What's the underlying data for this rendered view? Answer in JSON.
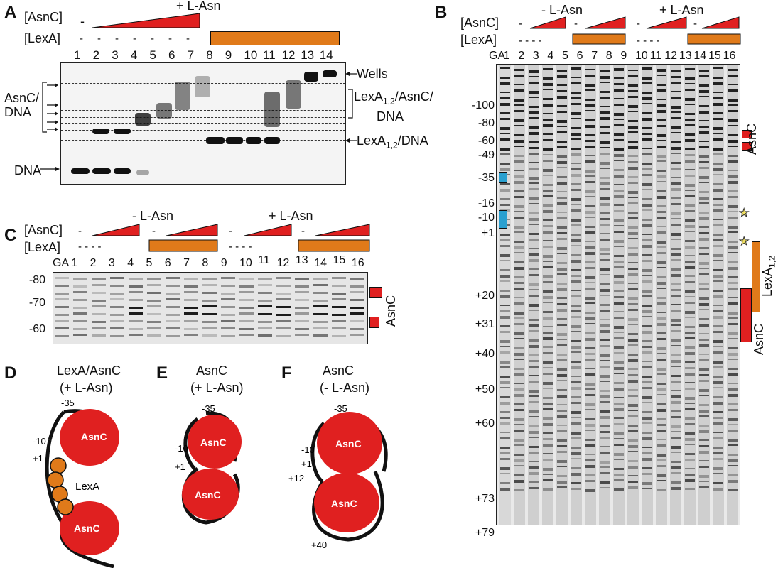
{
  "panels": {
    "A": {
      "letter": "A",
      "asnc_label": "[AsnC]",
      "lexa_label": "[LexA]",
      "lasn_label": "+ L-Asn",
      "lane_numbers": [
        "1",
        "2",
        "3",
        "4",
        "5",
        "6",
        "7",
        "8",
        "9",
        "10",
        "11",
        "12",
        "13",
        "14"
      ],
      "asnc_lane1": "-",
      "lexa_minus": [
        "-",
        "-",
        "-",
        "-",
        "-",
        "-",
        "-"
      ],
      "left_labels": {
        "complex": "AsnC/\nDNA",
        "dna": "DNA"
      },
      "right_labels": {
        "wells": "Wells",
        "lexa_asnc": "LexA",
        "lexa_asnc_sub": "1,2",
        "lexa_asnc_rest": "/AsnC/",
        "lexa_asnc_dna": "DNA",
        "lexa_dna": "LexA",
        "lexa_dna_sub": "1,2",
        "lexa_dna_rest": "/DNA"
      }
    },
    "B": {
      "letter": "B",
      "asnc_label": "[AsnC]",
      "lexa_label": "[LexA]",
      "minus_lasn": "- L-Asn",
      "plus_lasn": "+ L-Asn",
      "lane_header": [
        "GA",
        "1",
        "2",
        "3",
        "4",
        "5",
        "6",
        "7",
        "8",
        "9",
        "10",
        "11",
        "12",
        "13",
        "14",
        "15",
        "16"
      ],
      "positions": [
        "-100",
        "-80",
        "-60",
        "-49",
        "-35",
        "-16",
        "-10",
        "+1",
        "+20",
        "+31",
        "+40",
        "+50",
        "+60",
        "+73",
        "+79"
      ],
      "right_labels": {
        "asnc_top": "AsnC",
        "lexa": "LexA",
        "lexa_sub": "1,2",
        "asnc_bottom": "AsnC"
      }
    },
    "C": {
      "letter": "C",
      "asnc_label": "[AsnC]",
      "lexa_label": "[LexA]",
      "minus_lasn": "- L-Asn",
      "plus_lasn": "+ L-Asn",
      "lane_header": [
        "GA",
        "1",
        "2",
        "3",
        "4",
        "5",
        "6",
        "7",
        "8",
        "9",
        "10",
        "11",
        "12",
        "13",
        "14",
        "15",
        "16"
      ],
      "positions": [
        "-80",
        "-70",
        "-60"
      ],
      "right_label": "AsnC"
    },
    "D": {
      "letter": "D",
      "title1": "LexA/AsnC",
      "title2": "(+ L-Asn)",
      "pos": [
        "-35",
        "-10",
        "+1"
      ],
      "lexa": "LexA",
      "asnc": "AsnC"
    },
    "E": {
      "letter": "E",
      "title1": "AsnC",
      "title2": "(+ L-Asn)",
      "pos": [
        "-35",
        "-10",
        "+1"
      ],
      "asnc": "AsnC"
    },
    "F": {
      "letter": "F",
      "title1": "AsnC",
      "title2": "(- L-Asn)",
      "pos": [
        "-35",
        "-10",
        "+1",
        "+12",
        "+40"
      ],
      "asnc": "AsnC"
    }
  },
  "colors": {
    "asnc_red": "#e02020",
    "lexa_orange": "#e07a1a",
    "cyan": "#2aa0d0",
    "star": "#f0e060"
  }
}
